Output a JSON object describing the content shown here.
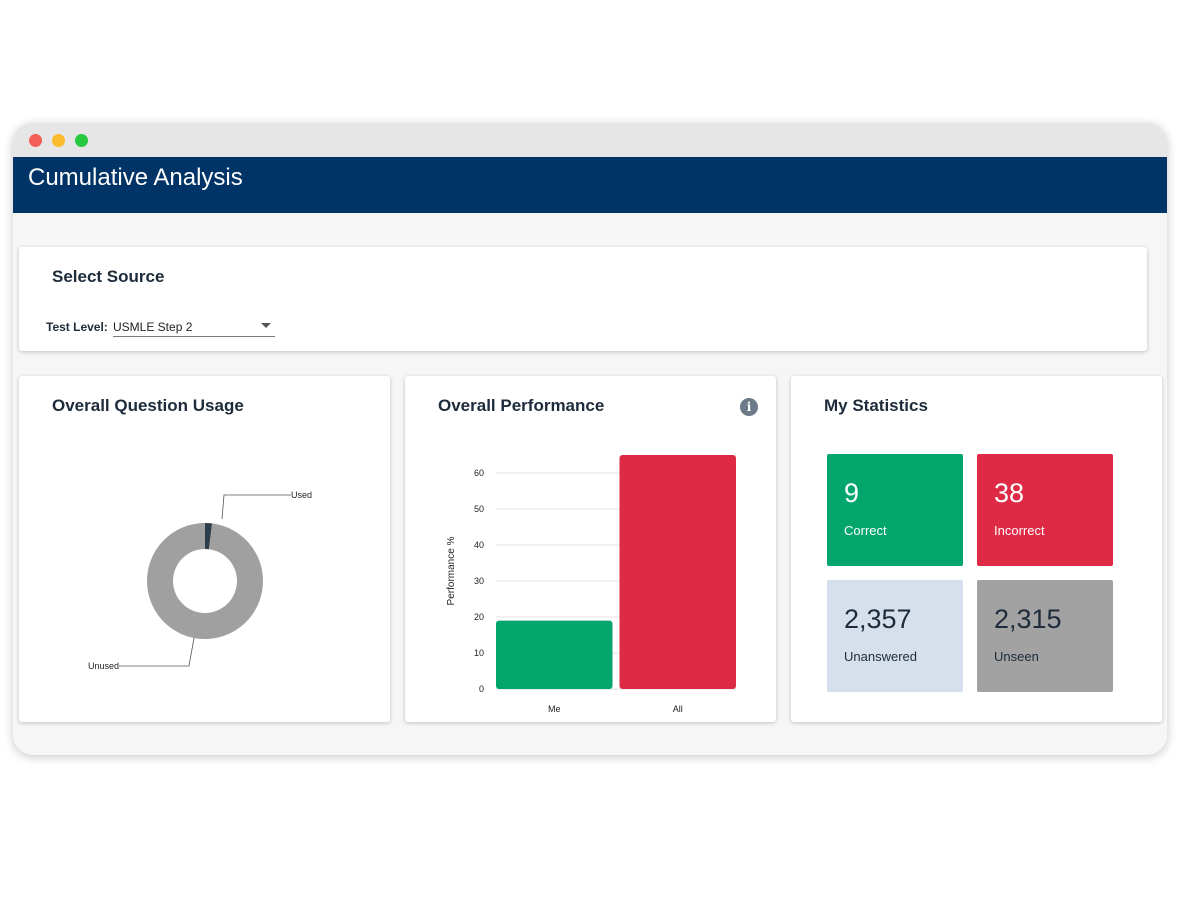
{
  "header": {
    "title": "Cumulative Analysis"
  },
  "source": {
    "title": "Select Source",
    "test_level_label": "Test Level:",
    "test_level_value": "USMLE Step 2"
  },
  "usage": {
    "title": "Overall Question Usage",
    "chart_data": {
      "type": "pie",
      "labels": [
        "Used",
        "Unused"
      ],
      "values": [
        47,
        2357
      ],
      "colors": [
        "#2d3e4a",
        "#a0a0a0"
      ]
    }
  },
  "performance": {
    "title": "Overall Performance",
    "info_icon": "info-icon",
    "chart_data": {
      "type": "bar",
      "categories": [
        "Me",
        "All"
      ],
      "values": [
        19,
        65
      ],
      "colors": [
        "#02a66c",
        "#df2a46"
      ],
      "ylabel": "Performance %",
      "ylim": [
        0,
        65
      ],
      "yticks": [
        0,
        10,
        20,
        30,
        40,
        50,
        60
      ],
      "grid": true
    }
  },
  "statistics": {
    "title": "My Statistics",
    "correct": {
      "value": "9",
      "label": "Correct",
      "color": "#02a66c"
    },
    "incorrect": {
      "value": "38",
      "label": "Incorrect",
      "color": "#df2a46"
    },
    "unanswered": {
      "value": "2,357",
      "label": "Unanswered",
      "color": "#d6e0ec"
    },
    "unseen": {
      "value": "2,315",
      "label": "Unseen",
      "color": "#a2a2a2"
    }
  }
}
